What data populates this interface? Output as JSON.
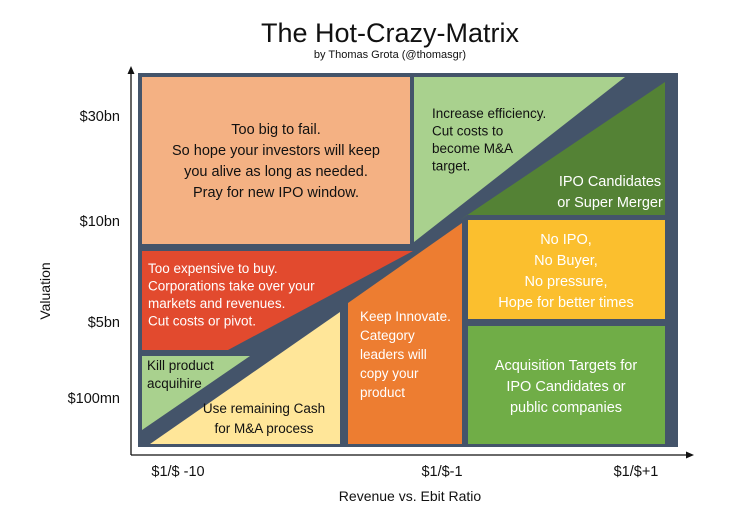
{
  "title": "The Hot-Crazy-Matrix",
  "subtitle": "by Thomas Grota (@thomasgr)",
  "x_axis": {
    "label": "Revenue vs. Ebit Ratio",
    "ticks": [
      "$1/$ -10",
      "$1/$-1",
      "$1/$+1"
    ]
  },
  "y_axis": {
    "label": "Valuation",
    "ticks": [
      "$30bn",
      "$10bn",
      "$5bn",
      "$100mn"
    ]
  },
  "regions": [
    {
      "id": "too-big",
      "color": "#F4B183",
      "text_color": "#111111",
      "lines": [
        "Too big to fail.",
        "So hope your investors will keep",
        "you alive as long as needed.",
        "Pray for new IPO window."
      ]
    },
    {
      "id": "efficiency",
      "color": "#A9D18E",
      "text_color": "#111111",
      "lines": [
        "Increase efficiency.",
        "Cut costs to",
        "become M&A",
        "target."
      ]
    },
    {
      "id": "ipo-candidates",
      "color": "#548235",
      "text_color": "#ffffff",
      "lines": [
        "IPO Candidates",
        "or Super Merger"
      ]
    },
    {
      "id": "too-expensive",
      "color": "#E24A2E",
      "text_color": "#ffffff",
      "lines": [
        "Too expensive to buy.",
        "Corporations take over your",
        "markets and revenues.",
        "Cut costs or pivot."
      ]
    },
    {
      "id": "no-ipo",
      "color": "#FBBF2E",
      "text_color": "#ffffff",
      "lines": [
        "No IPO,",
        "No Buyer,",
        "No pressure,",
        "Hope for better times"
      ]
    },
    {
      "id": "keep-innovate",
      "color": "#ED7D31",
      "text_color": "#ffffff",
      "lines": [
        "Keep Innovate.",
        "Category",
        "leaders will",
        "copy your",
        "product"
      ]
    },
    {
      "id": "kill-product",
      "color": "#A9D18E",
      "text_color": "#111111",
      "lines": [
        "Kill product",
        "acquihire"
      ]
    },
    {
      "id": "remaining-cash",
      "color": "#FFE699",
      "text_color": "#111111",
      "lines": [
        "Use remaining Cash",
        "for M&A process"
      ]
    },
    {
      "id": "acquisition-targets",
      "color": "#70AD47",
      "text_color": "#ffffff",
      "lines": [
        "Acquisition Targets for",
        "IPO Candidates or",
        "public companies"
      ]
    }
  ],
  "border_color": "#44546A"
}
